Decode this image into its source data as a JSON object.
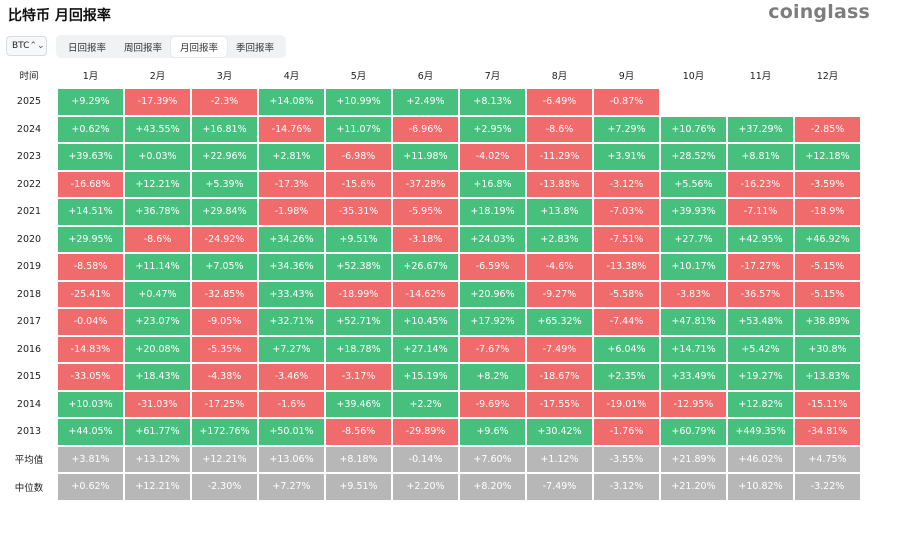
{
  "header": {
    "title": "比特币 月回报率",
    "logo": "coinglass"
  },
  "asset": {
    "value": "BTC",
    "chevron_icon": "chevron-updown-icon"
  },
  "tabs": [
    {
      "label": "日回报率",
      "active": false
    },
    {
      "label": "周回报率",
      "active": false
    },
    {
      "label": "月回报率",
      "active": true
    },
    {
      "label": "季回报率",
      "active": false
    }
  ],
  "colors": {
    "positive": "#47c07e",
    "negative": "#f06b6b",
    "stat": "#b7b7b7"
  },
  "table": {
    "corner": "时间",
    "months": [
      "1月",
      "2月",
      "3月",
      "4月",
      "5月",
      "6月",
      "7月",
      "8月",
      "9月",
      "10月",
      "11月",
      "12月"
    ],
    "rows": [
      {
        "label": "2025",
        "cells": [
          "+9.29%",
          "-17.39%",
          "-2.3%",
          "+14.08%",
          "+10.99%",
          "+2.49%",
          "+8.13%",
          "-6.49%",
          "-0.87%",
          "",
          "",
          ""
        ]
      },
      {
        "label": "2024",
        "cells": [
          "+0.62%",
          "+43.55%",
          "+16.81%",
          "-14.76%",
          "+11.07%",
          "-6.96%",
          "+2.95%",
          "-8.6%",
          "+7.29%",
          "+10.76%",
          "+37.29%",
          "-2.85%"
        ]
      },
      {
        "label": "2023",
        "cells": [
          "+39.63%",
          "+0.03%",
          "+22.96%",
          "+2.81%",
          "-6.98%",
          "+11.98%",
          "-4.02%",
          "-11.29%",
          "+3.91%",
          "+28.52%",
          "+8.81%",
          "+12.18%"
        ]
      },
      {
        "label": "2022",
        "cells": [
          "-16.68%",
          "+12.21%",
          "+5.39%",
          "-17.3%",
          "-15.6%",
          "-37.28%",
          "+16.8%",
          "-13.88%",
          "-3.12%",
          "+5.56%",
          "-16.23%",
          "-3.59%"
        ]
      },
      {
        "label": "2021",
        "cells": [
          "+14.51%",
          "+36.78%",
          "+29.84%",
          "-1.98%",
          "-35.31%",
          "-5.95%",
          "+18.19%",
          "+13.8%",
          "-7.03%",
          "+39.93%",
          "-7.11%",
          "-18.9%"
        ]
      },
      {
        "label": "2020",
        "cells": [
          "+29.95%",
          "-8.6%",
          "-24.92%",
          "+34.26%",
          "+9.51%",
          "-3.18%",
          "+24.03%",
          "+2.83%",
          "-7.51%",
          "+27.7%",
          "+42.95%",
          "+46.92%"
        ]
      },
      {
        "label": "2019",
        "cells": [
          "-8.58%",
          "+11.14%",
          "+7.05%",
          "+34.36%",
          "+52.38%",
          "+26.67%",
          "-6.59%",
          "-4.6%",
          "-13.38%",
          "+10.17%",
          "-17.27%",
          "-5.15%"
        ]
      },
      {
        "label": "2018",
        "cells": [
          "-25.41%",
          "+0.47%",
          "-32.85%",
          "+33.43%",
          "-18.99%",
          "-14.62%",
          "+20.96%",
          "-9.27%",
          "-5.58%",
          "-3.83%",
          "-36.57%",
          "-5.15%"
        ]
      },
      {
        "label": "2017",
        "cells": [
          "-0.04%",
          "+23.07%",
          "-9.05%",
          "+32.71%",
          "+52.71%",
          "+10.45%",
          "+17.92%",
          "+65.32%",
          "-7.44%",
          "+47.81%",
          "+53.48%",
          "+38.89%"
        ]
      },
      {
        "label": "2016",
        "cells": [
          "-14.83%",
          "+20.08%",
          "-5.35%",
          "+7.27%",
          "+18.78%",
          "+27.14%",
          "-7.67%",
          "-7.49%",
          "+6.04%",
          "+14.71%",
          "+5.42%",
          "+30.8%"
        ]
      },
      {
        "label": "2015",
        "cells": [
          "-33.05%",
          "+18.43%",
          "-4.38%",
          "-3.46%",
          "-3.17%",
          "+15.19%",
          "+8.2%",
          "-18.67%",
          "+2.35%",
          "+33.49%",
          "+19.27%",
          "+13.83%"
        ]
      },
      {
        "label": "2014",
        "cells": [
          "+10.03%",
          "-31.03%",
          "-17.25%",
          "-1.6%",
          "+39.46%",
          "+2.2%",
          "-9.69%",
          "-17.55%",
          "-19.01%",
          "-12.95%",
          "+12.82%",
          "-15.11%"
        ]
      },
      {
        "label": "2013",
        "cells": [
          "+44.05%",
          "+61.77%",
          "+172.76%",
          "+50.01%",
          "-8.56%",
          "-29.89%",
          "+9.6%",
          "+30.42%",
          "-1.76%",
          "+60.79%",
          "+449.35%",
          "-34.81%"
        ]
      }
    ],
    "stats": [
      {
        "label": "平均值",
        "cells": [
          "+3.81%",
          "+13.12%",
          "+12.21%",
          "+13.06%",
          "+8.18%",
          "-0.14%",
          "+7.60%",
          "+1.12%",
          "-3.55%",
          "+21.89%",
          "+46.02%",
          "+4.75%"
        ]
      },
      {
        "label": "中位数",
        "cells": [
          "+0.62%",
          "+12.21%",
          "-2.30%",
          "+7.27%",
          "+9.51%",
          "+2.20%",
          "+8.20%",
          "-7.49%",
          "-3.12%",
          "+21.20%",
          "+10.82%",
          "-3.22%"
        ]
      }
    ]
  }
}
